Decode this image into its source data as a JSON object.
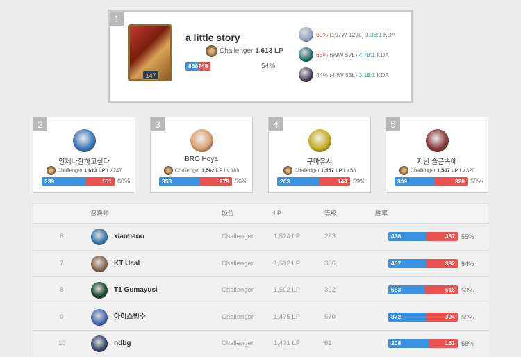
{
  "colors": {
    "win": "#3b93e0",
    "loss": "#e9524f",
    "kda_green": "#3aaa8a",
    "kda_blue": "#3b8fd0",
    "winrate_red": "#d05a5a"
  },
  "top": {
    "rank": "1",
    "name": "a little story",
    "level": "147",
    "tier": "Challenger",
    "lp": "1,613 LP",
    "wins": 868,
    "losses": 748,
    "winrate": "54%",
    "champions": [
      {
        "winrate": "60%",
        "record": "(197W 129L)",
        "kda": "3.38:1",
        "kda_suffix": "KDA",
        "wr_hot": true,
        "kda_color": "green",
        "icon": "#8fa0c0"
      },
      {
        "winrate": "63%",
        "record": "(99W 57L)",
        "kda": "4.78:1",
        "kda_suffix": "KDA",
        "wr_hot": true,
        "kda_color": "blue",
        "icon": "#1e6a6a"
      },
      {
        "winrate": "44%",
        "record": "(44W 55L)",
        "kda": "3.18:1",
        "kda_suffix": "KDA",
        "wr_hot": false,
        "kda_color": "green",
        "icon": "#4a3a5a"
      }
    ]
  },
  "cards": [
    {
      "rank": "2",
      "name": "언제나잘하고싶다",
      "tier": "Challenger",
      "lp": "1,613 LP",
      "level": "Lv.247",
      "wins": 239,
      "losses": 161,
      "winrate": "60%",
      "icon": "#3c78b8"
    },
    {
      "rank": "3",
      "name": "BRO Hoya",
      "tier": "Challenger",
      "lp": "1,562 LP",
      "level": "Lv.189",
      "wins": 353,
      "losses": 279,
      "winrate": "56%",
      "icon": "#d9a070"
    },
    {
      "rank": "4",
      "name": "구마유시",
      "tier": "Challenger",
      "lp": "1,557 LP",
      "level": "Lv.58",
      "wins": 203,
      "losses": 144,
      "winrate": "59%",
      "icon": "#c8b020"
    },
    {
      "rank": "5",
      "name": "지난 슬픔속에",
      "tier": "Challenger",
      "lp": "1,547 LP",
      "level": "Lv.320",
      "wins": 399,
      "losses": 320,
      "winrate": "55%",
      "icon": "#8a3a3a"
    }
  ],
  "table": {
    "headers": {
      "summoner": "召唤师",
      "tier": "段位",
      "lp": "LP",
      "level": "等级",
      "winrate": "胜率"
    },
    "rows": [
      {
        "rank": "6",
        "name": "xiaohaoo",
        "tier": "Challenger",
        "lp": "1,524 LP",
        "level": "233",
        "wins": 436,
        "losses": 357,
        "winrate": "55%",
        "icon": "#3a7ab0"
      },
      {
        "rank": "7",
        "name": "KT Ucal",
        "tier": "Challenger",
        "lp": "1,512 LP",
        "level": "336",
        "wins": 457,
        "losses": 382,
        "winrate": "54%",
        "icon": "#8a6a50"
      },
      {
        "rank": "8",
        "name": "T1 Gumayusi",
        "tier": "Challenger",
        "lp": "1,502 LP",
        "level": "392",
        "wins": 683,
        "losses": 616,
        "winrate": "53%",
        "icon": "#1a4a30"
      },
      {
        "rank": "9",
        "name": "아이스빙수",
        "tier": "Challenger",
        "lp": "1,475 LP",
        "level": "570",
        "wins": 372,
        "losses": 304,
        "winrate": "55%",
        "icon": "#4a6ab0"
      },
      {
        "rank": "10",
        "name": "ndbg",
        "tier": "Challenger",
        "lp": "1,471 LP",
        "level": "61",
        "wins": 208,
        "losses": 153,
        "winrate": "58%",
        "icon": "#3a4a6a"
      }
    ]
  }
}
